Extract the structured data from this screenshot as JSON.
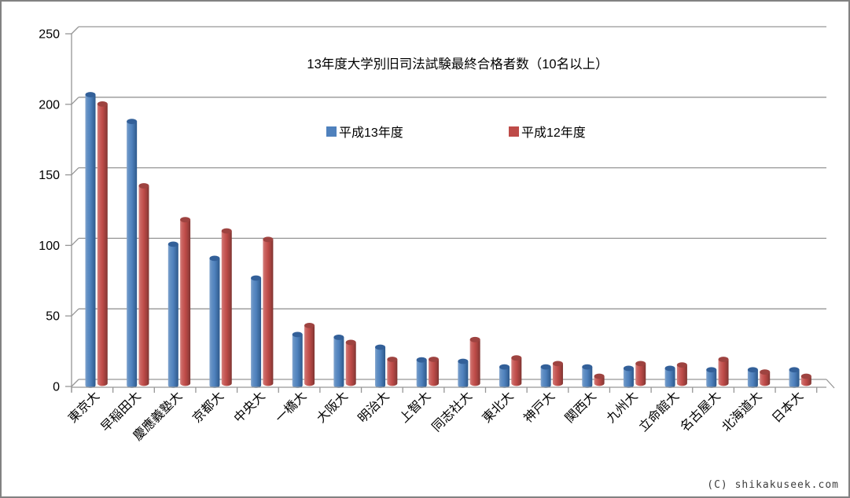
{
  "window": {
    "background": "#ffffff",
    "frame_border_color": "#828282"
  },
  "watermark": "(C) shikakuseek.com",
  "chart_data": {
    "type": "bar",
    "style": "3d-cylinder",
    "title": "13年度大学別旧司法試験最終合格者数（10名以上）",
    "xlabel": "",
    "ylabel": "",
    "ylim": [
      0,
      250
    ],
    "yticks": [
      0,
      50,
      100,
      150,
      200,
      250
    ],
    "grid": true,
    "legend_position": "top-center",
    "axis_color": "#969696",
    "text_color": "#000000",
    "categories": [
      "東京大",
      "早稲田大",
      "慶應義塾大",
      "京都大",
      "中央大",
      "一橋大",
      "大阪大",
      "明治大",
      "上智大",
      "同志社大",
      "東北大",
      "神戸大",
      "関西大",
      "九州大",
      "立命館大",
      "名古屋大",
      "北海道大",
      "日本大"
    ],
    "series": [
      {
        "name": "平成13年度",
        "color": "#4F81BD",
        "cap_color": "#336099",
        "values": [
          206,
          187,
          100,
          90,
          76,
          36,
          34,
          27,
          18,
          17,
          13,
          13,
          13,
          12,
          12,
          11,
          11,
          11
        ]
      },
      {
        "name": "平成12年度",
        "color": "#BE4B48",
        "cap_color": "#9E4340",
        "values": [
          198,
          140,
          116,
          108,
          102,
          41,
          29,
          17,
          17,
          31,
          18,
          14,
          5,
          14,
          13,
          17,
          8,
          5
        ]
      }
    ]
  }
}
